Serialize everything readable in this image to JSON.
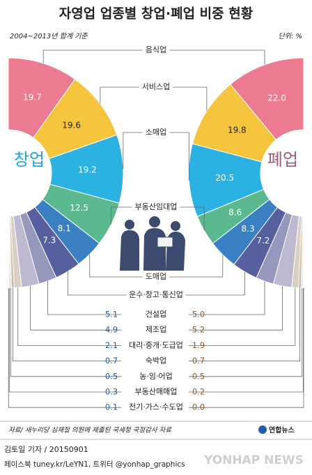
{
  "chart_data": {
    "type": "half-donut",
    "title": "자영업 업종별 창업·폐업 비중 현황",
    "subtitle": "2004~2013년 합계 기준",
    "unit": "단위: %",
    "categories": [
      "음식업",
      "서비스업",
      "소매업",
      "부동산임대업",
      "도매업",
      "운수·창고·통신업",
      "건설업",
      "제조업",
      "대리·중개·도급업",
      "숙박업",
      "농·임·어업",
      "부동산매매업",
      "전기·가스·수도업"
    ],
    "colors": [
      "#ec7a90",
      "#f6c53e",
      "#2bb2e3",
      "#5cb88e",
      "#3a80c2",
      "#56609e",
      "#9597bd",
      "#bcb9d0",
      "#d9d0c3",
      "#c6b79f",
      "#e8ddce",
      "#d3c1a6",
      "#bba98f"
    ],
    "series": [
      {
        "name": "창업",
        "color": "#1ea3dc",
        "values": [
          19.7,
          19.6,
          19.2,
          12.5,
          8.1,
          7.3,
          5.1,
          4.9,
          2.1,
          0.7,
          0.5,
          0.3,
          0.1
        ],
        "value_labels": [
          "19.7",
          "19.6",
          "19.2",
          "12.5",
          "8.1",
          "7.3",
          "5.1",
          "4.9",
          "2.1",
          "0.7",
          "0.5",
          "0.3",
          "0.1"
        ]
      },
      {
        "name": "폐업",
        "color": "#9c5c7c",
        "values": [
          22.0,
          19.8,
          20.5,
          8.6,
          8.3,
          7.2,
          5.0,
          5.2,
          1.9,
          0.7,
          0.5,
          0.2,
          0.0
        ],
        "value_labels": [
          "22.0",
          "19.8",
          "20.5",
          "8.6",
          "8.3",
          "7.2",
          "5.0",
          "5.2",
          "1.9",
          "0.7",
          "0.5",
          "0.2",
          "0.0"
        ]
      }
    ]
  },
  "footer": {
    "source": "자료/ 새누리당 심재철 의원에 제출된 국세청 국정감사 자료",
    "logo": "연합뉴스",
    "byline": "김토일 기자 / 20150901",
    "social": "페이스북 tuney.kr/LeYN1, 트위터 @yonhap_graphics",
    "watermark": "YONHAP NEWS"
  }
}
